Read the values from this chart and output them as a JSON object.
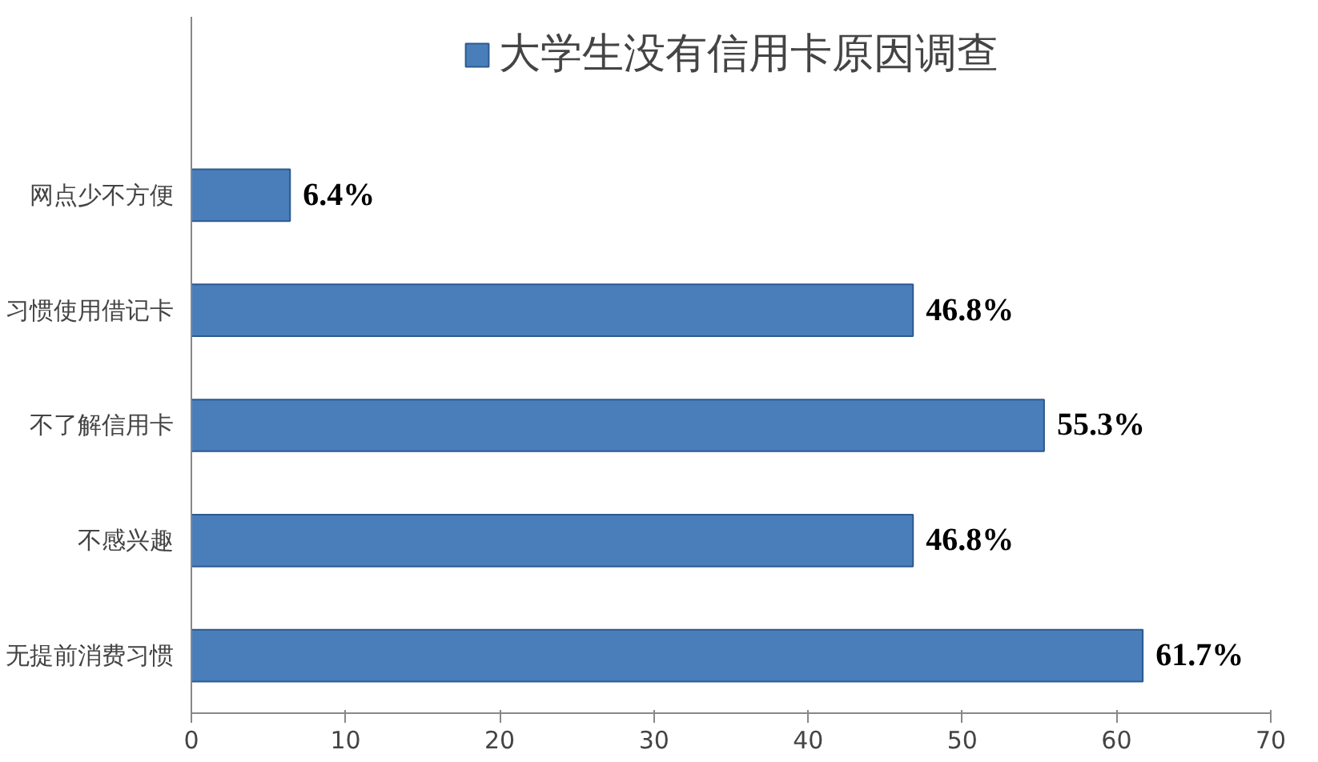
{
  "chart_data": {
    "type": "bar",
    "orientation": "horizontal",
    "categories": [
      "网点少不方便",
      "习惯使用借记卡",
      "不了解信用卡",
      "不感兴趣",
      "无提前消费习惯"
    ],
    "series": [
      {
        "name": "大学生没有信用卡原因调查",
        "color": "#4a7ebb",
        "values": [
          6.4,
          46.8,
          55.3,
          46.8,
          61.7
        ],
        "value_labels": [
          "6.4%",
          "46.8%",
          "55.3%",
          "46.8%",
          "61.7%"
        ]
      }
    ],
    "xlim": [
      0,
      70
    ],
    "xticks": [
      0,
      10,
      20,
      30,
      40,
      50,
      60,
      70
    ],
    "grid": false,
    "legend": "top"
  }
}
